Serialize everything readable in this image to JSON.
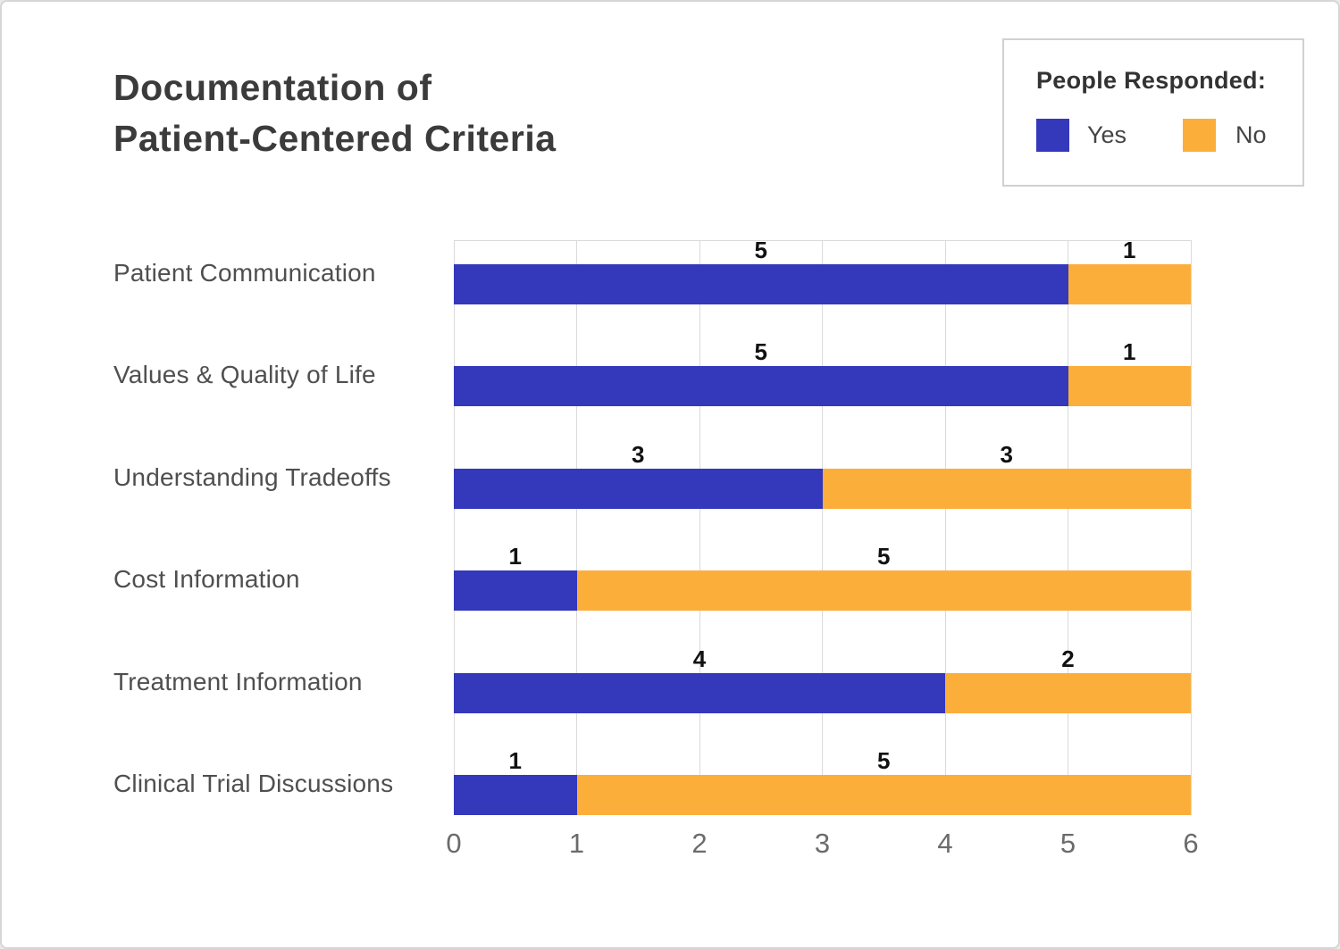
{
  "title": {
    "line1": "Documentation of",
    "line2": "Patient-Centered Criteria"
  },
  "legend": {
    "title": "People Responded:",
    "items": [
      {
        "label": "Yes",
        "color": "#3438BB"
      },
      {
        "label": "No",
        "color": "#FCAE3B"
      }
    ]
  },
  "chart_data": {
    "type": "bar",
    "orientation": "horizontal",
    "stacked": true,
    "title": "Documentation of Patient-Centered Criteria",
    "categories": [
      "Patient Communication",
      "Values & Quality of Life",
      "Understanding Tradeoffs",
      "Cost Information",
      "Treatment Information",
      "Clinical Trial Discussions"
    ],
    "series": [
      {
        "name": "Yes",
        "color": "#3438BB",
        "values": [
          5,
          5,
          3,
          1,
          4,
          1
        ]
      },
      {
        "name": "No",
        "color": "#FCAE3B",
        "values": [
          1,
          1,
          3,
          5,
          2,
          5
        ]
      }
    ],
    "xlim": [
      0,
      6
    ],
    "x_ticks": [
      "0",
      "1",
      "2",
      "3",
      "4",
      "5",
      "6"
    ],
    "grid": "vertical-and-row-baselines",
    "gridline_color": "#dadada",
    "value_labels": true,
    "legend_position": "top-right"
  }
}
